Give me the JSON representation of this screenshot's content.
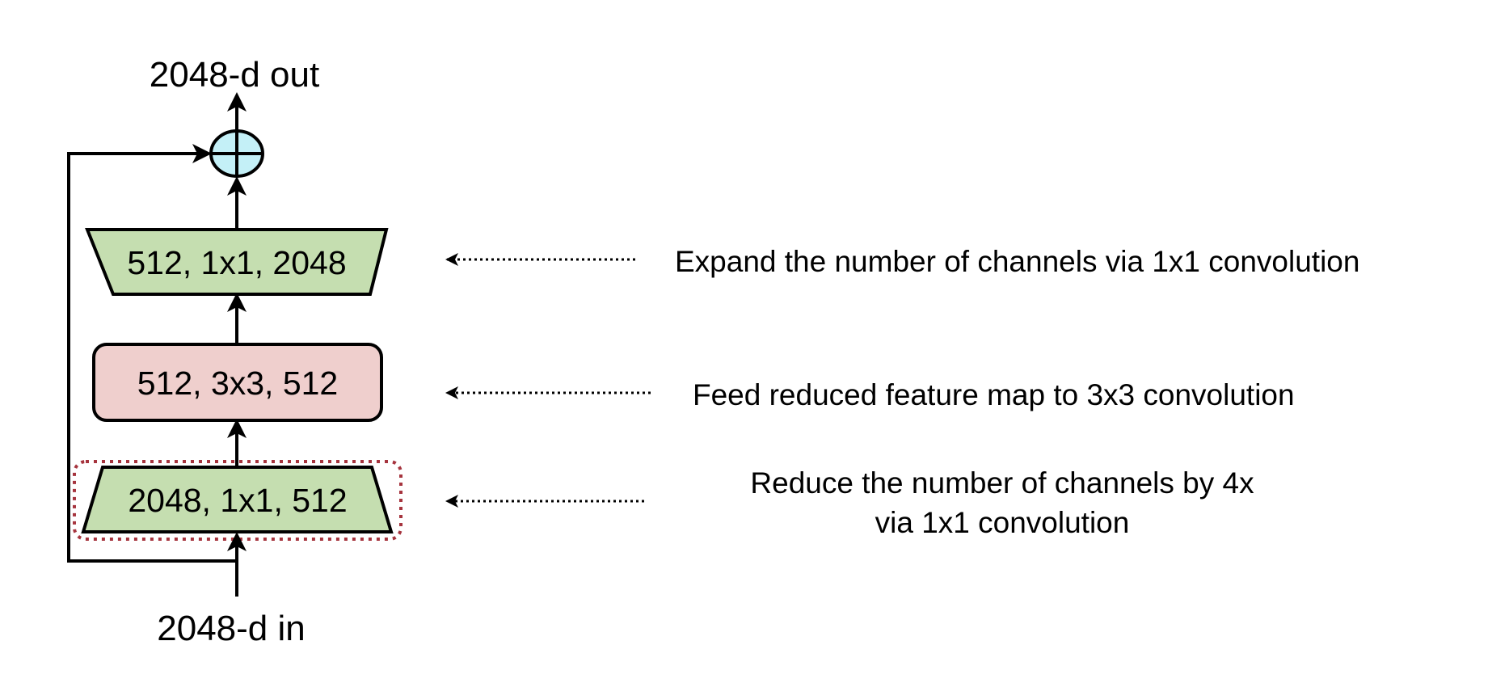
{
  "io": {
    "output_label": "2048-d out",
    "input_label": "2048-d in"
  },
  "blocks": {
    "expand": {
      "label": "512, 1x1, 2048",
      "fill": "#c5deb0"
    },
    "conv3x3": {
      "label": "512, 3x3, 512",
      "fill": "#efcfcd"
    },
    "reduce": {
      "label": "2048, 1x1, 512",
      "fill": "#c5deb0"
    }
  },
  "sum_node": {
    "icon": "plus-circle-icon",
    "fill": "#c4f0f7"
  },
  "highlight": {
    "color": "#a6343e"
  },
  "annotations": {
    "expand": "Expand the number of channels via 1x1 convolution",
    "conv3x3": "Feed reduced feature map to 3x3 convolution",
    "reduce_line1": "Reduce the number of channels by 4x",
    "reduce_line2": "via 1x1 convolution"
  }
}
